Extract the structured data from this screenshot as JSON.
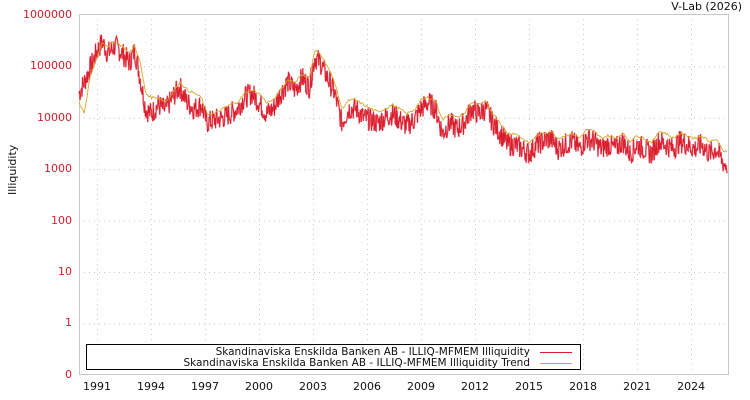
{
  "header": {
    "credit": "V-Lab (2026)"
  },
  "colors": {
    "series": "#d91e2e",
    "series_light": "#f08a94",
    "trend": "#d4a72c",
    "ytick": "#d01c2a",
    "grid": "#c8c8c8"
  },
  "chart_data": {
    "type": "line",
    "title": "",
    "xlabel": "",
    "ylabel": "Illiquidity",
    "yscale": "log",
    "yticks": [
      "1000000",
      "100000",
      "10000",
      "1000",
      "100",
      "10",
      "1",
      "0"
    ],
    "xticks": [
      "1991",
      "1994",
      "1997",
      "2000",
      "2003",
      "2006",
      "2009",
      "2012",
      "2015",
      "2018",
      "2021",
      "2024"
    ],
    "xlim": [
      1990.0,
      2026.05
    ],
    "ylim": [
      0.1,
      1000000
    ],
    "grid": true,
    "legend_position": "lower center",
    "series": [
      {
        "name": "Skandinaviska Enskilda Banken AB - ILLIQ-MFMEM Illiquidity",
        "color": "#d91e2e",
        "x": [
          1990.0,
          1990.3,
          1990.6,
          1991.0,
          1991.3,
          1991.6,
          1992.0,
          1992.4,
          1992.8,
          1993.1,
          1993.4,
          1993.7,
          1994.0,
          1994.4,
          1994.8,
          1995.2,
          1995.6,
          1996.0,
          1996.4,
          1996.8,
          1997.1,
          1997.5,
          1998.0,
          1998.4,
          1998.8,
          1999.2,
          1999.6,
          2000.0,
          2000.4,
          2000.8,
          2001.2,
          2001.6,
          2002.0,
          2002.4,
          2002.8,
          2003.1,
          2003.4,
          2003.8,
          2004.2,
          2004.6,
          2005.0,
          2005.4,
          2005.8,
          2006.2,
          2006.6,
          2007.0,
          2007.4,
          2007.8,
          2008.2,
          2008.6,
          2009.0,
          2009.4,
          2009.8,
          2010.2,
          2010.6,
          2011.0,
          2011.4,
          2011.8,
          2012.2,
          2012.6,
          2013.0,
          2013.4,
          2013.8,
          2014.2,
          2014.6,
          2015.0,
          2015.4,
          2015.8,
          2016.2,
          2016.6,
          2017.0,
          2017.4,
          2017.8,
          2018.2,
          2018.6,
          2019.0,
          2019.4,
          2019.8,
          2020.2,
          2020.6,
          2021.0,
          2021.4,
          2021.8,
          2022.2,
          2022.6,
          2023.0,
          2023.4,
          2023.8,
          2024.2,
          2024.6,
          2025.0,
          2025.4,
          2025.8,
          2026.0
        ],
        "values": [
          30000,
          50000,
          90000,
          200000,
          300000,
          180000,
          250000,
          180000,
          120000,
          200000,
          60000,
          15000,
          12000,
          18000,
          14000,
          25000,
          40000,
          20000,
          15000,
          18000,
          8000,
          9000,
          10000,
          12000,
          15000,
          25000,
          30000,
          20000,
          12000,
          15000,
          30000,
          50000,
          35000,
          60000,
          40000,
          150000,
          120000,
          60000,
          30000,
          8000,
          15000,
          15000,
          10000,
          9000,
          8000,
          10000,
          12000,
          9000,
          7000,
          9000,
          15000,
          20000,
          15000,
          5000,
          8000,
          6000,
          8000,
          15000,
          12000,
          15000,
          8000,
          5000,
          3000,
          3000,
          2500,
          2000,
          3000,
          3500,
          4000,
          2500,
          3000,
          3500,
          2500,
          4000,
          3500,
          2500,
          3000,
          2500,
          3500,
          2000,
          3000,
          2500,
          2000,
          3500,
          3000,
          2500,
          3500,
          3000,
          2500,
          3000,
          2000,
          2500,
          1300,
          1200
        ]
      },
      {
        "name": "Skandinaviska Enskilda Banken AB - ILLIQ-MFMEM Illiquidity Trend",
        "color": "#d4a72c",
        "x": [
          1990.0,
          1990.3,
          1990.6,
          1991.0,
          1991.3,
          1991.6,
          1992.0,
          1992.4,
          1992.8,
          1993.1,
          1993.4,
          1993.7,
          1994.0,
          1994.4,
          1994.8,
          1995.2,
          1995.6,
          1996.0,
          1996.4,
          1996.8,
          1997.1,
          1997.5,
          1998.0,
          1998.4,
          1998.8,
          1999.2,
          1999.6,
          2000.0,
          2000.4,
          2000.8,
          2001.2,
          2001.6,
          2002.0,
          2002.4,
          2002.8,
          2003.1,
          2003.4,
          2003.8,
          2004.2,
          2004.6,
          2005.0,
          2005.4,
          2005.8,
          2006.2,
          2006.6,
          2007.0,
          2007.4,
          2007.8,
          2008.2,
          2008.6,
          2009.0,
          2009.4,
          2009.8,
          2010.2,
          2010.6,
          2011.0,
          2011.4,
          2011.8,
          2012.2,
          2012.6,
          2013.0,
          2013.4,
          2013.8,
          2014.2,
          2014.6,
          2015.0,
          2015.4,
          2015.8,
          2016.2,
          2016.6,
          2017.0,
          2017.4,
          2017.8,
          2018.2,
          2018.6,
          2019.0,
          2019.4,
          2019.8,
          2020.2,
          2020.6,
          2021.0,
          2021.4,
          2021.8,
          2022.2,
          2022.6,
          2023.0,
          2023.4,
          2023.8,
          2024.2,
          2024.6,
          2025.0,
          2025.4,
          2025.8,
          2026.0
        ],
        "values": [
          20000,
          12000,
          60000,
          150000,
          300000,
          250000,
          300000,
          250000,
          180000,
          250000,
          120000,
          30000,
          25000,
          25000,
          20000,
          30000,
          50000,
          35000,
          30000,
          25000,
          12000,
          12000,
          15000,
          18000,
          20000,
          30000,
          35000,
          30000,
          20000,
          22000,
          35000,
          55000,
          50000,
          70000,
          60000,
          200000,
          180000,
          100000,
          50000,
          15000,
          22000,
          22000,
          18000,
          15000,
          13000,
          15000,
          18000,
          15000,
          12000,
          14000,
          22000,
          25000,
          22000,
          9000,
          12000,
          10000,
          12000,
          20000,
          18000,
          20000,
          12000,
          8000,
          5000,
          5000,
          4000,
          3200,
          4500,
          5000,
          5500,
          4000,
          4500,
          5000,
          4000,
          6000,
          5500,
          4000,
          4500,
          4000,
          5000,
          3500,
          4500,
          4000,
          3200,
          5500,
          5000,
          4000,
          5000,
          4500,
          4000,
          4500,
          3500,
          3800,
          2300,
          2100
        ]
      }
    ]
  }
}
